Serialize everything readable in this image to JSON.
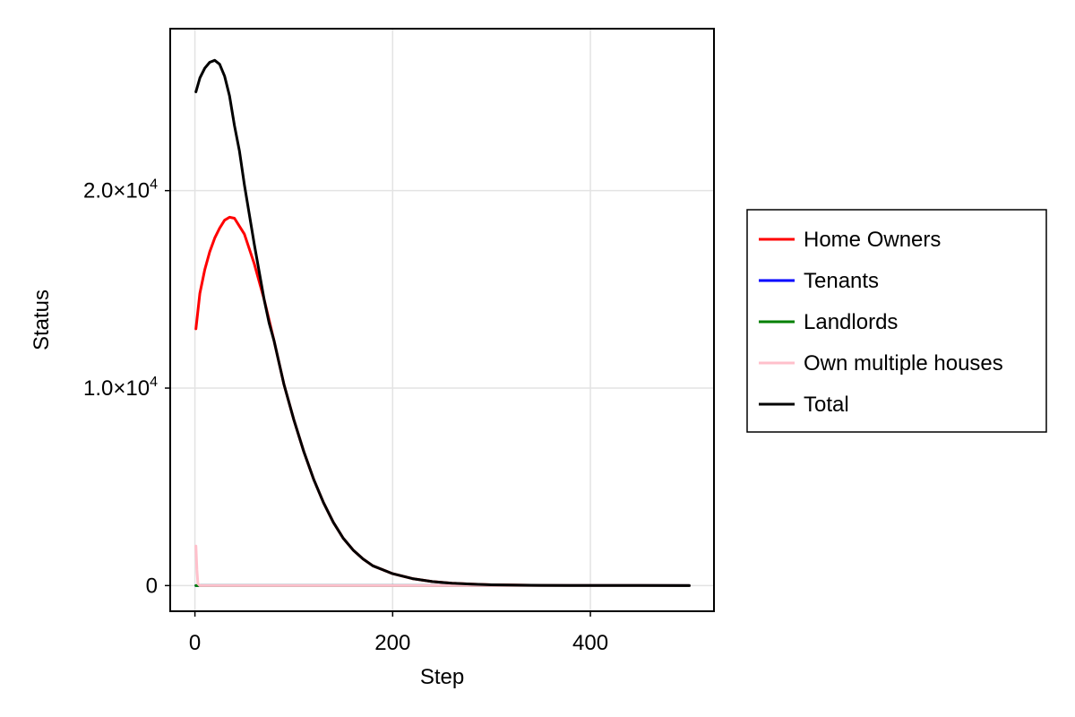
{
  "chart_data": {
    "type": "line",
    "title": "",
    "xlabel": "Step",
    "ylabel": "Status",
    "xlim": [
      -25,
      525
    ],
    "ylim": [
      -1300,
      28200
    ],
    "x_ticks": [
      0,
      200,
      400
    ],
    "x_tick_labels": [
      "0",
      "200",
      "400"
    ],
    "y_ticks": [
      0,
      10000,
      20000
    ],
    "y_tick_labels": [
      {
        "mantissa": "0",
        "exp": ""
      },
      {
        "mantissa": "1.0×10",
        "exp": "4"
      },
      {
        "mantissa": "2.0×10",
        "exp": "4"
      }
    ],
    "grid": true,
    "legend_position": "right",
    "series": [
      {
        "name": "Home Owners",
        "color": "#ff0000",
        "x": [
          1,
          5,
          10,
          15,
          20,
          25,
          30,
          35,
          40,
          50,
          60,
          70,
          80,
          90,
          100,
          110,
          120,
          130,
          140,
          150,
          160,
          170,
          180,
          200,
          220,
          240,
          260,
          280,
          300,
          350,
          400,
          450,
          500
        ],
        "y": [
          13000,
          14800,
          16000,
          16900,
          17600,
          18100,
          18500,
          18650,
          18600,
          17800,
          16300,
          14500,
          12400,
          10200,
          8400,
          6800,
          5400,
          4200,
          3200,
          2400,
          1800,
          1350,
          1000,
          600,
          350,
          200,
          120,
          70,
          40,
          12,
          4,
          1,
          0
        ]
      },
      {
        "name": "Tenants",
        "color": "#0000ff",
        "x": [
          1,
          2,
          5,
          500
        ],
        "y": [
          0,
          0,
          0,
          0
        ]
      },
      {
        "name": "Landlords",
        "color": "#008000",
        "x": [
          1,
          2,
          5,
          500
        ],
        "y": [
          0,
          0,
          0,
          0
        ]
      },
      {
        "name": "Own multiple houses",
        "color": "#ffc0cb",
        "x": [
          1,
          2,
          3,
          5,
          10,
          50,
          100,
          200,
          300,
          400,
          500
        ],
        "y": [
          2000,
          800,
          100,
          0,
          0,
          0,
          0,
          0,
          0,
          0,
          0
        ]
      },
      {
        "name": "Total",
        "color": "#000000",
        "x": [
          1,
          5,
          10,
          15,
          20,
          25,
          30,
          35,
          40,
          45,
          50,
          55,
          60,
          65,
          70,
          75,
          80,
          85,
          90,
          100,
          110,
          120,
          130,
          140,
          150,
          160,
          170,
          180,
          200,
          220,
          240,
          260,
          280,
          300,
          350,
          400,
          450,
          500
        ],
        "y": [
          25000,
          25700,
          26200,
          26500,
          26600,
          26400,
          25800,
          24800,
          23300,
          22000,
          20300,
          18800,
          17300,
          15900,
          14500,
          13300,
          12400,
          11300,
          10200,
          8400,
          6800,
          5400,
          4200,
          3200,
          2400,
          1800,
          1350,
          1000,
          600,
          350,
          200,
          120,
          70,
          40,
          12,
          4,
          1,
          0
        ]
      }
    ]
  }
}
